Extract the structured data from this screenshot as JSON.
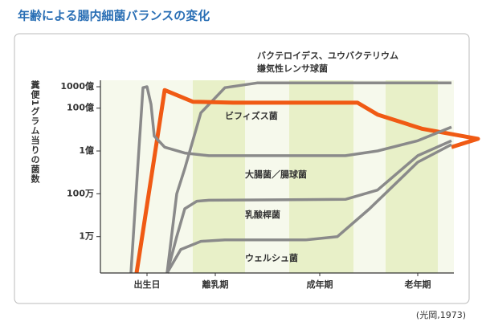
{
  "chart_data": {
    "type": "line",
    "title": "年齢による腸内細菌バランスの変化",
    "y_label": "糞便1グラム当りの菌数",
    "source": "(光岡,1973)",
    "log_scale": true,
    "grid": false,
    "xlim": [
      0,
      440
    ],
    "xticks": [
      {
        "value": 58,
        "label": "出生日"
      },
      {
        "value": 143,
        "label": "離乳期"
      },
      {
        "value": 273,
        "label": "成年期"
      },
      {
        "value": 395,
        "label": "老年期"
      }
    ],
    "ylim": [
      200,
      200000000000
    ],
    "yticks": [
      {
        "value": 100000000000,
        "label": "1000億"
      },
      {
        "value": 10000000000,
        "label": "100億"
      },
      {
        "value": 100000000,
        "label": "1億"
      },
      {
        "value": 1000000,
        "label": "100万"
      },
      {
        "value": 10000,
        "label": "1万"
      }
    ],
    "series": [
      {
        "name": [
          "バクテロイデス、ユウバクテリウム",
          "嫌気性レンサ球菌"
        ],
        "color": "#8a8a8a",
        "x": [
          83,
          95,
          105,
          125,
          155,
          195,
          437
        ],
        "values": [
          200,
          1000000,
          15000000,
          6000000000,
          90000000000,
          150000000000,
          150000000000
        ]
      },
      {
        "name": "ビフィズス菌",
        "color": "#f05a14",
        "x": [
          45,
          80,
          115,
          165,
          320,
          345,
          400,
          470,
          437
        ],
        "values": [
          200,
          70000000000,
          20000000000,
          18000000000,
          18000000000,
          5000000000,
          1100000000,
          370000000,
          150000000
        ]
      },
      {
        "name": "大腸菌／腸球菌",
        "color": "#8a8a8a",
        "x": [
          38,
          47,
          53,
          58,
          63,
          67,
          80,
          105,
          135,
          305,
          345,
          395,
          437
        ],
        "values": [
          200,
          35000000,
          90000000000,
          100000000000,
          15000000000,
          500000000,
          150000000,
          80000000,
          60000000,
          60000000,
          100000000,
          300000000,
          1300000000
        ]
      },
      {
        "name": "乳酸桿菌",
        "color": "#8a8a8a",
        "x": [
          83,
          95,
          105,
          120,
          135,
          305,
          345,
          395,
          437
        ],
        "values": [
          200,
          10000,
          200000,
          450000,
          500000,
          550000,
          1500000,
          60000000,
          300000000
        ]
      },
      {
        "name": "ウェルシュ菌",
        "color": "#8a8a8a",
        "x": [
          83,
          100,
          125,
          155,
          255,
          295,
          335,
          395,
          437
        ],
        "values": [
          200,
          2500,
          6000,
          7000,
          7000,
          10000,
          200000,
          30000000,
          200000000
        ]
      }
    ]
  }
}
